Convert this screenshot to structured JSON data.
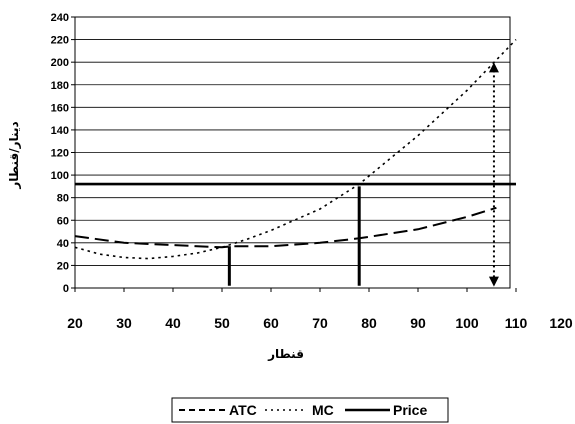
{
  "chart_data": {
    "type": "line",
    "title": "",
    "xlabel": "قنطار",
    "ylabel": "دينار/قنطار",
    "xlim": [
      20,
      120
    ],
    "ylim": [
      0,
      240
    ],
    "x_ticks": [
      20,
      30,
      40,
      50,
      60,
      70,
      80,
      90,
      100,
      110,
      120
    ],
    "y_ticks": [
      0,
      20,
      40,
      60,
      80,
      100,
      120,
      140,
      160,
      180,
      200,
      220,
      240
    ],
    "grid": "horizontal",
    "legend_position": "bottom",
    "series": [
      {
        "name": "ATC",
        "style": "dashed",
        "color": "#000000",
        "x": [
          20,
          30,
          40,
          50,
          52,
          60,
          70,
          78,
          90,
          100,
          106
        ],
        "y": [
          46,
          40,
          38,
          36,
          37,
          37,
          40,
          44,
          52,
          63,
          71
        ]
      },
      {
        "name": "MC",
        "style": "dotted",
        "color": "#000000",
        "x": [
          20,
          25,
          30,
          35,
          40,
          45,
          50,
          55,
          60,
          70,
          78,
          90,
          100,
          110
        ],
        "y": [
          36,
          30,
          27,
          26,
          28,
          31,
          36,
          43,
          51,
          70,
          92,
          135,
          175,
          220
        ]
      },
      {
        "name": "Price",
        "style": "solid",
        "color": "#000000",
        "x": [
          20,
          110
        ],
        "y": [
          92,
          92
        ]
      }
    ],
    "annotations": [
      {
        "type": "vertical-bar",
        "x": 51.5,
        "y_from": 2,
        "y_to": 37
      },
      {
        "type": "vertical-bar",
        "x": 78,
        "y_from": 2,
        "y_to": 90
      },
      {
        "type": "double-arrow",
        "x": 105.5,
        "y_from": 3,
        "y_to": 198,
        "style": "dotted"
      }
    ]
  }
}
